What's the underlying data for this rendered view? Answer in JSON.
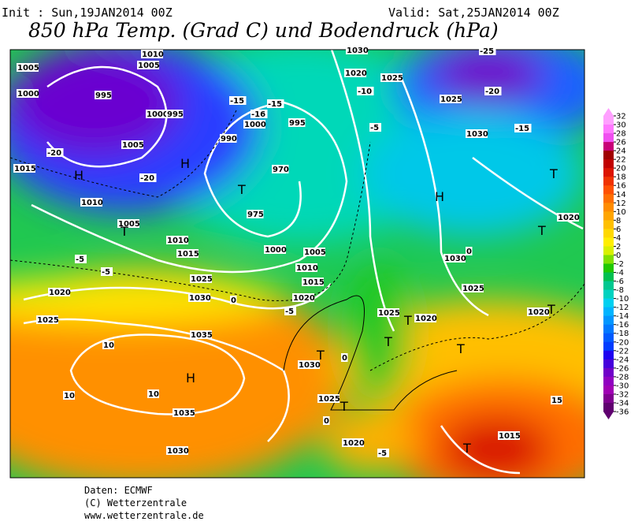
{
  "header": {
    "init": "Init : Sun,19JAN2014 00Z",
    "valid": "Valid: Sat,25JAN2014 00Z",
    "title": "850 hPa Temp. (Grad C) und Bodendruck (hPa)"
  },
  "colorbar": {
    "labels": [
      32,
      30,
      28,
      26,
      24,
      22,
      20,
      18,
      16,
      14,
      12,
      10,
      8,
      6,
      4,
      2,
      0,
      -2,
      -4,
      -6,
      -8,
      -10,
      -12,
      -14,
      -16,
      -18,
      -20,
      -22,
      -24,
      -26,
      -28,
      -30,
      -32,
      -34,
      -36
    ],
    "colors": [
      "#ffa0ff",
      "#ff78ff",
      "#f050f0",
      "#c80078",
      "#a00000",
      "#c00000",
      "#dc1400",
      "#f03200",
      "#ff5000",
      "#ff6e00",
      "#ff8c00",
      "#ffa500",
      "#ffc000",
      "#ffd800",
      "#ffee00",
      "#d8f000",
      "#80e000",
      "#20c800",
      "#00c050",
      "#00c890",
      "#00d2c0",
      "#00d0f0",
      "#00b4ff",
      "#0096ff",
      "#0078ff",
      "#005aff",
      "#003cff",
      "#1e00f0",
      "#4600dc",
      "#7000c8",
      "#9000c0",
      "#a000b4",
      "#800090",
      "#600070"
    ]
  },
  "map": {
    "labels": [
      "1010",
      "1005",
      "1005",
      "1000",
      "995",
      "1000",
      "995",
      "1005",
      "-20",
      "1015",
      "H",
      "H",
      "-20",
      "1010",
      "1005",
      "T",
      "1010",
      "1015",
      "-5",
      "-5",
      "1025",
      "1020",
      "1030",
      "0",
      "1025",
      "10",
      "1035",
      "H",
      "10",
      "1035",
      "10",
      "1030",
      "970",
      "T",
      "975",
      "1000",
      "995",
      "990",
      "-15",
      "-15",
      "-16",
      "1000",
      "1030",
      "1020",
      "1025",
      "-10",
      "-5",
      "-25",
      "1025",
      "-20",
      "1030",
      "-15",
      "H",
      "T",
      "1020",
      "T",
      "1030",
      "0",
      "1025",
      "1005",
      "1010",
      "1015",
      "1020",
      "-5",
      "1025",
      "1020",
      "T",
      "T",
      "1030",
      "T",
      "0",
      "T",
      "1020",
      "T",
      "15",
      "1025",
      "T",
      "0",
      "1020",
      "-5",
      "1015",
      "T"
    ]
  },
  "footer": {
    "line1": "Daten: ECMWF",
    "line2": "(C) Wetterzentrale",
    "line3": "www.wetterzentrale.de"
  }
}
